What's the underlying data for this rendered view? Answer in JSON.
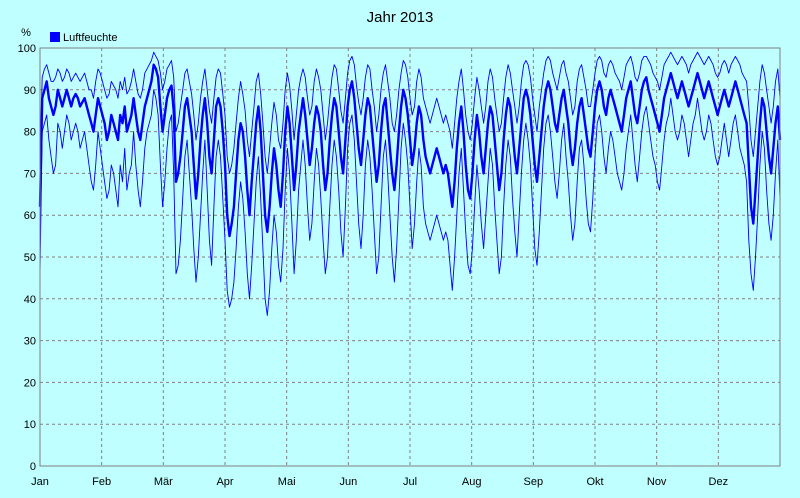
{
  "chart_data": {
    "type": "line",
    "title": "Jahr 2013",
    "ylabel": "%",
    "ylim": [
      0,
      100
    ],
    "y_ticks": [
      0,
      10,
      20,
      30,
      40,
      50,
      60,
      70,
      80,
      90,
      100
    ],
    "x_ticks": [
      "Jan",
      "Feb",
      "Mär",
      "Apr",
      "Mai",
      "Jun",
      "Jul",
      "Aug",
      "Sep",
      "Okt",
      "Nov",
      "Dez"
    ],
    "grid": true,
    "legend": {
      "placement": "top-left",
      "entries": [
        {
          "label": "Luftfeuchte",
          "color": "#0000ff"
        }
      ]
    },
    "colors": {
      "background": "#c0ffff",
      "series": "#0000ff",
      "grid": "#808080"
    },
    "series": [
      {
        "name": "Luftfeuchte",
        "style": "daily-mean",
        "values": [
          62,
          88,
          90,
          92,
          88,
          86,
          84,
          86,
          90,
          88,
          86,
          88,
          90,
          88,
          86,
          88,
          89,
          88,
          86,
          87,
          88,
          86,
          84,
          82,
          80,
          84,
          88,
          86,
          84,
          82,
          78,
          80,
          84,
          82,
          80,
          78,
          84,
          82,
          86,
          80,
          82,
          84,
          88,
          84,
          80,
          78,
          82,
          86,
          88,
          90,
          92,
          96,
          95,
          93,
          86,
          80,
          84,
          88,
          90,
          91,
          85,
          68,
          70,
          74,
          80,
          86,
          88,
          84,
          80,
          72,
          64,
          70,
          78,
          84,
          88,
          82,
          74,
          70,
          78,
          86,
          88,
          86,
          80,
          72,
          60,
          55,
          58,
          62,
          70,
          78,
          82,
          80,
          74,
          66,
          60,
          68,
          75,
          82,
          86,
          80,
          70,
          60,
          56,
          62,
          70,
          76,
          72,
          66,
          62,
          70,
          80,
          86,
          82,
          74,
          66,
          72,
          80,
          84,
          88,
          84,
          78,
          72,
          76,
          82,
          86,
          84,
          80,
          72,
          66,
          70,
          78,
          84,
          88,
          86,
          80,
          74,
          70,
          78,
          86,
          90,
          92,
          88,
          82,
          76,
          72,
          78,
          84,
          88,
          86,
          80,
          74,
          68,
          72,
          80,
          86,
          88,
          82,
          76,
          70,
          66,
          72,
          80,
          86,
          90,
          88,
          84,
          78,
          72,
          76,
          82,
          86,
          84,
          78,
          74,
          72,
          70,
          72,
          74,
          76,
          74,
          72,
          70,
          72,
          70,
          66,
          62,
          68,
          76,
          82,
          86,
          80,
          72,
          66,
          64,
          70,
          78,
          84,
          80,
          74,
          70,
          76,
          82,
          86,
          84,
          78,
          72,
          66,
          70,
          78,
          84,
          88,
          86,
          80,
          74,
          70,
          76,
          82,
          88,
          90,
          88,
          84,
          78,
          72,
          68,
          74,
          80,
          86,
          90,
          92,
          90,
          86,
          82,
          80,
          84,
          88,
          90,
          86,
          82,
          76,
          72,
          76,
          82,
          86,
          88,
          84,
          80,
          76,
          74,
          80,
          86,
          90,
          92,
          90,
          86,
          84,
          88,
          90,
          88,
          86,
          84,
          82,
          80,
          84,
          88,
          90,
          92,
          88,
          84,
          82,
          86,
          90,
          92,
          93,
          90,
          88,
          86,
          84,
          82,
          80,
          84,
          88,
          90,
          92,
          94,
          92,
          90,
          88,
          90,
          92,
          90,
          88,
          86,
          88,
          90,
          92,
          94,
          92,
          90,
          88,
          90,
          92,
          90,
          88,
          86,
          84,
          86,
          88,
          90,
          88,
          86,
          88,
          90,
          92,
          90,
          88,
          86,
          84,
          82,
          72,
          62,
          58,
          66,
          74,
          82,
          88,
          86,
          80,
          74,
          70,
          76,
          82,
          86,
          78
        ]
      },
      {
        "name": "Luftfeuchte",
        "style": "daily-max",
        "values": [
          72,
          93,
          95,
          96,
          94,
          92,
          92,
          93,
          95,
          94,
          92,
          93,
          95,
          94,
          92,
          93,
          94,
          93,
          92,
          93,
          94,
          92,
          90,
          90,
          88,
          92,
          95,
          94,
          92,
          90,
          88,
          89,
          92,
          91,
          90,
          88,
          92,
          90,
          93,
          89,
          90,
          92,
          95,
          92,
          89,
          88,
          90,
          94,
          95,
          96,
          97,
          99,
          98,
          97,
          94,
          90,
          92,
          95,
          96,
          97,
          93,
          80,
          82,
          86,
          90,
          94,
          95,
          92,
          89,
          84,
          78,
          82,
          88,
          92,
          95,
          90,
          85,
          82,
          88,
          93,
          95,
          94,
          89,
          84,
          74,
          70,
          72,
          76,
          82,
          88,
          92,
          89,
          85,
          78,
          74,
          80,
          86,
          92,
          94,
          89,
          82,
          74,
          70,
          76,
          82,
          87,
          84,
          78,
          76,
          82,
          90,
          94,
          91,
          85,
          78,
          84,
          90,
          93,
          95,
          93,
          88,
          84,
          86,
          92,
          95,
          93,
          90,
          84,
          78,
          82,
          88,
          93,
          96,
          95,
          90,
          85,
          82,
          88,
          94,
          97,
          98,
          96,
          91,
          87,
          84,
          88,
          93,
          96,
          95,
          90,
          86,
          80,
          84,
          90,
          94,
          96,
          92,
          88,
          82,
          80,
          84,
          90,
          94,
          97,
          96,
          93,
          88,
          84,
          86,
          92,
          95,
          93,
          88,
          86,
          84,
          82,
          84,
          86,
          88,
          86,
          84,
          82,
          84,
          82,
          80,
          76,
          82,
          88,
          92,
          95,
          90,
          84,
          80,
          78,
          82,
          88,
          93,
          90,
          86,
          82,
          86,
          92,
          95,
          93,
          88,
          84,
          80,
          82,
          88,
          93,
          96,
          94,
          90,
          86,
          82,
          86,
          92,
          96,
          97,
          96,
          93,
          88,
          84,
          80,
          86,
          90,
          94,
          97,
          98,
          97,
          94,
          92,
          90,
          93,
          96,
          97,
          94,
          92,
          88,
          84,
          86,
          92,
          95,
          96,
          93,
          90,
          86,
          86,
          90,
          94,
          97,
          98,
          97,
          94,
          93,
          96,
          97,
          96,
          94,
          93,
          92,
          90,
          93,
          96,
          97,
          98,
          96,
          93,
          92,
          94,
          97,
          98,
          98,
          97,
          96,
          94,
          93,
          92,
          90,
          93,
          96,
          97,
          98,
          99,
          98,
          97,
          96,
          97,
          98,
          97,
          96,
          94,
          96,
          97,
          98,
          99,
          98,
          97,
          96,
          97,
          98,
          97,
          96,
          94,
          93,
          94,
          96,
          97,
          96,
          94,
          96,
          97,
          98,
          97,
          96,
          94,
          93,
          92,
          86,
          78,
          74,
          80,
          86,
          92,
          96,
          94,
          90,
          86,
          82,
          86,
          92,
          95,
          88
        ]
      },
      {
        "name": "Luftfeuchte",
        "style": "daily-min",
        "values": [
          46,
          80,
          82,
          84,
          78,
          74,
          70,
          72,
          82,
          80,
          76,
          80,
          84,
          82,
          78,
          80,
          82,
          80,
          76,
          78,
          80,
          76,
          72,
          68,
          66,
          72,
          80,
          76,
          72,
          68,
          64,
          66,
          72,
          70,
          66,
          62,
          72,
          68,
          76,
          66,
          70,
          72,
          80,
          72,
          66,
          62,
          68,
          76,
          80,
          82,
          84,
          90,
          88,
          84,
          72,
          62,
          68,
          76,
          82,
          84,
          70,
          46,
          48,
          54,
          64,
          74,
          78,
          70,
          62,
          52,
          44,
          50,
          60,
          70,
          78,
          66,
          54,
          48,
          62,
          74,
          78,
          74,
          64,
          54,
          42,
          38,
          40,
          44,
          52,
          62,
          68,
          64,
          56,
          46,
          40,
          48,
          58,
          68,
          74,
          64,
          52,
          40,
          36,
          42,
          52,
          60,
          56,
          48,
          44,
          52,
          66,
          76,
          70,
          58,
          46,
          54,
          66,
          72,
          78,
          72,
          62,
          54,
          58,
          68,
          76,
          72,
          64,
          54,
          46,
          50,
          62,
          72,
          78,
          74,
          66,
          56,
          50,
          62,
          76,
          82,
          84,
          78,
          68,
          58,
          52,
          60,
          72,
          78,
          74,
          66,
          56,
          46,
          50,
          62,
          74,
          78,
          70,
          60,
          50,
          44,
          52,
          64,
          76,
          82,
          78,
          72,
          62,
          52,
          58,
          68,
          76,
          72,
          62,
          58,
          56,
          54,
          56,
          58,
          60,
          58,
          56,
          54,
          56,
          54,
          48,
          42,
          50,
          60,
          70,
          76,
          66,
          56,
          48,
          46,
          52,
          62,
          72,
          66,
          58,
          52,
          60,
          68,
          76,
          72,
          62,
          54,
          46,
          50,
          62,
          72,
          78,
          74,
          64,
          56,
          50,
          60,
          70,
          78,
          82,
          78,
          72,
          62,
          52,
          48,
          56,
          66,
          76,
          82,
          84,
          80,
          74,
          68,
          64,
          70,
          78,
          82,
          74,
          68,
          60,
          54,
          58,
          68,
          76,
          78,
          72,
          64,
          58,
          56,
          64,
          74,
          82,
          84,
          80,
          74,
          70,
          76,
          80,
          78,
          74,
          70,
          68,
          66,
          70,
          76,
          80,
          84,
          78,
          72,
          68,
          74,
          80,
          84,
          86,
          82,
          78,
          74,
          72,
          68,
          66,
          72,
          78,
          82,
          84,
          88,
          84,
          80,
          78,
          80,
          84,
          82,
          78,
          74,
          78,
          82,
          84,
          88,
          84,
          80,
          78,
          80,
          84,
          82,
          78,
          74,
          72,
          74,
          78,
          82,
          78,
          74,
          78,
          82,
          84,
          80,
          76,
          74,
          72,
          68,
          54,
          46,
          42,
          50,
          60,
          72,
          80,
          76,
          66,
          58,
          54,
          60,
          70,
          78,
          64
        ]
      }
    ]
  }
}
